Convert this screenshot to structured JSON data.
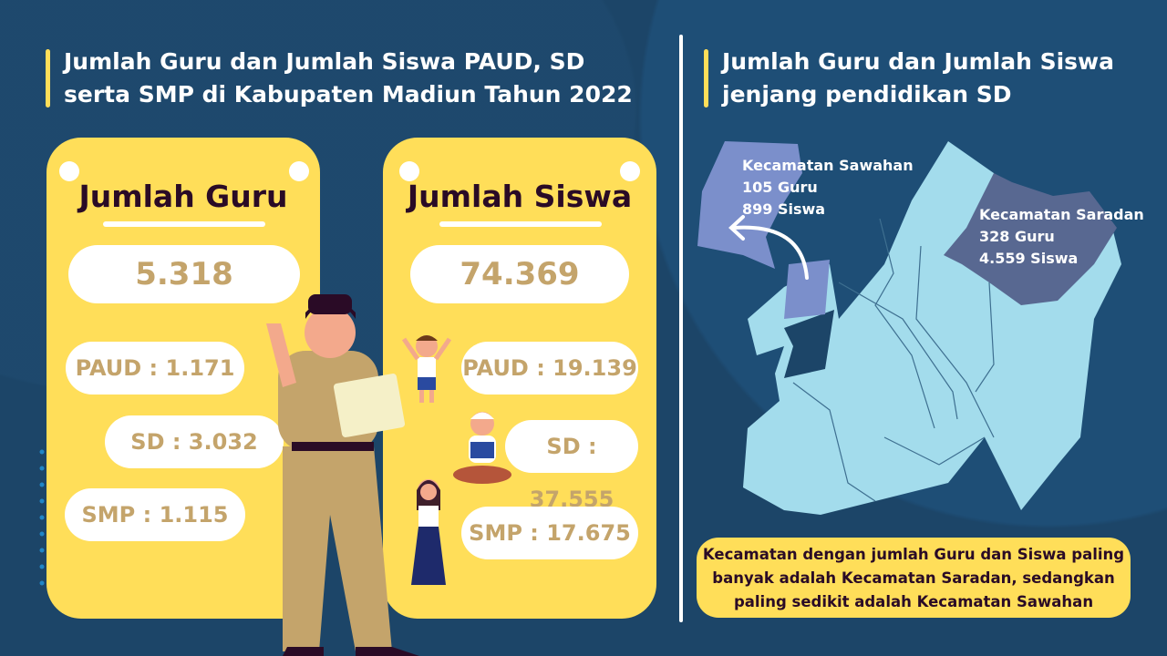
{
  "left_title": "Jumlah Guru dan Jumlah Siswa PAUD, SD serta SMP di Kabupaten Madiun Tahun 2022",
  "right_title": "Jumlah Guru dan Jumlah Siswa jenjang pendidikan SD",
  "guru": {
    "heading": "Jumlah Guru",
    "total": "5.318",
    "paud": "PAUD : 1.171",
    "sd": "SD : 3.032",
    "smp": "SMP : 1.115"
  },
  "siswa": {
    "heading": "Jumlah Siswa",
    "total": "74.369",
    "paud": "PAUD : 19.139",
    "sd": "SD : 37.555",
    "smp": "SMP : 17.675"
  },
  "map": {
    "sawahan": {
      "name": "Kecamatan Sawahan",
      "guru": "105 Guru",
      "siswa": "899 Siswa",
      "color": "#7b8fcb"
    },
    "saradan": {
      "name": "Kecamatan Saradan",
      "guru": "328 Guru",
      "siswa": "4.559 Siswa",
      "color": "#586891"
    },
    "base_color": "#a3dcec"
  },
  "note": "Kecamatan dengan jumlah Guru dan Siswa paling banyak adalah Kecamatan Saradan, sedangkan paling sedikit adalah Kecamatan Sawahan",
  "colors": {
    "background": "#1c4568",
    "card": "#ffde59",
    "number": "#c4a46b",
    "heading": "#2a0b26"
  }
}
